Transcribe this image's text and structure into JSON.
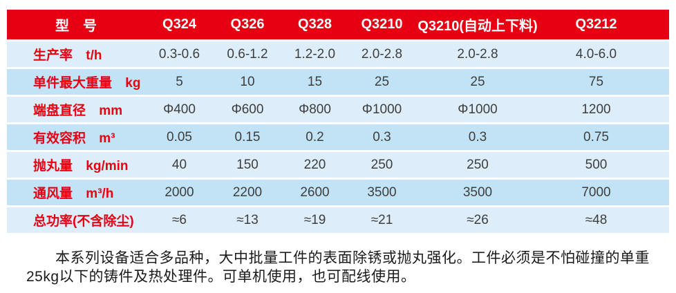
{
  "colors": {
    "header_red": "#e60012",
    "row_light": "#ddeefa",
    "row_dark": "#c2e3f5",
    "label_red": "#e60012",
    "value_gray": "#3d3d3d"
  },
  "table": {
    "header": {
      "model": "型　号",
      "columns": [
        "Q324",
        "Q326",
        "Q328",
        "Q3210",
        "Q3210(自动上下料)",
        "Q3212"
      ]
    },
    "rows": [
      {
        "label": "生产率",
        "unit": "t/h",
        "values": [
          "0.3-0.6",
          "0.6-1.2",
          "1.2-2.0",
          "2.0-2.8",
          "2.0-2.8",
          "4.0-6.0"
        ]
      },
      {
        "label": "单件最大重量",
        "unit": "kg",
        "values": [
          "5",
          "10",
          "15",
          "25",
          "25",
          "75"
        ]
      },
      {
        "label": "端盘直径",
        "unit": "mm",
        "values": [
          "Φ400",
          "Φ600",
          "Φ800",
          "Φ1000",
          "Φ1000",
          "1200"
        ]
      },
      {
        "label": "有效容积",
        "unit": "m³",
        "values": [
          "0.05",
          "0.15",
          "0.2",
          "0.3",
          "0.3",
          "0.75"
        ]
      },
      {
        "label": "抛丸量",
        "unit": "kg/min",
        "values": [
          "40",
          "150",
          "220",
          "250",
          "250",
          "500"
        ]
      },
      {
        "label": "通风量",
        "unit": "m³/h",
        "values": [
          "2000",
          "2200",
          "2600",
          "3500",
          "3500",
          "7000"
        ]
      },
      {
        "label": "总功率(不含除尘)",
        "unit": "",
        "values": [
          "≈6",
          "≈13",
          "≈19",
          "≈21",
          "≈26",
          "≈48"
        ]
      }
    ]
  },
  "description": {
    "text": "本系列设备适合多品种，大中批量工件的表面除锈或抛丸强化。工件必须是不怕碰撞的单重25kg以下的铸件及热处理件。可单机使用，也可配线使用。"
  }
}
